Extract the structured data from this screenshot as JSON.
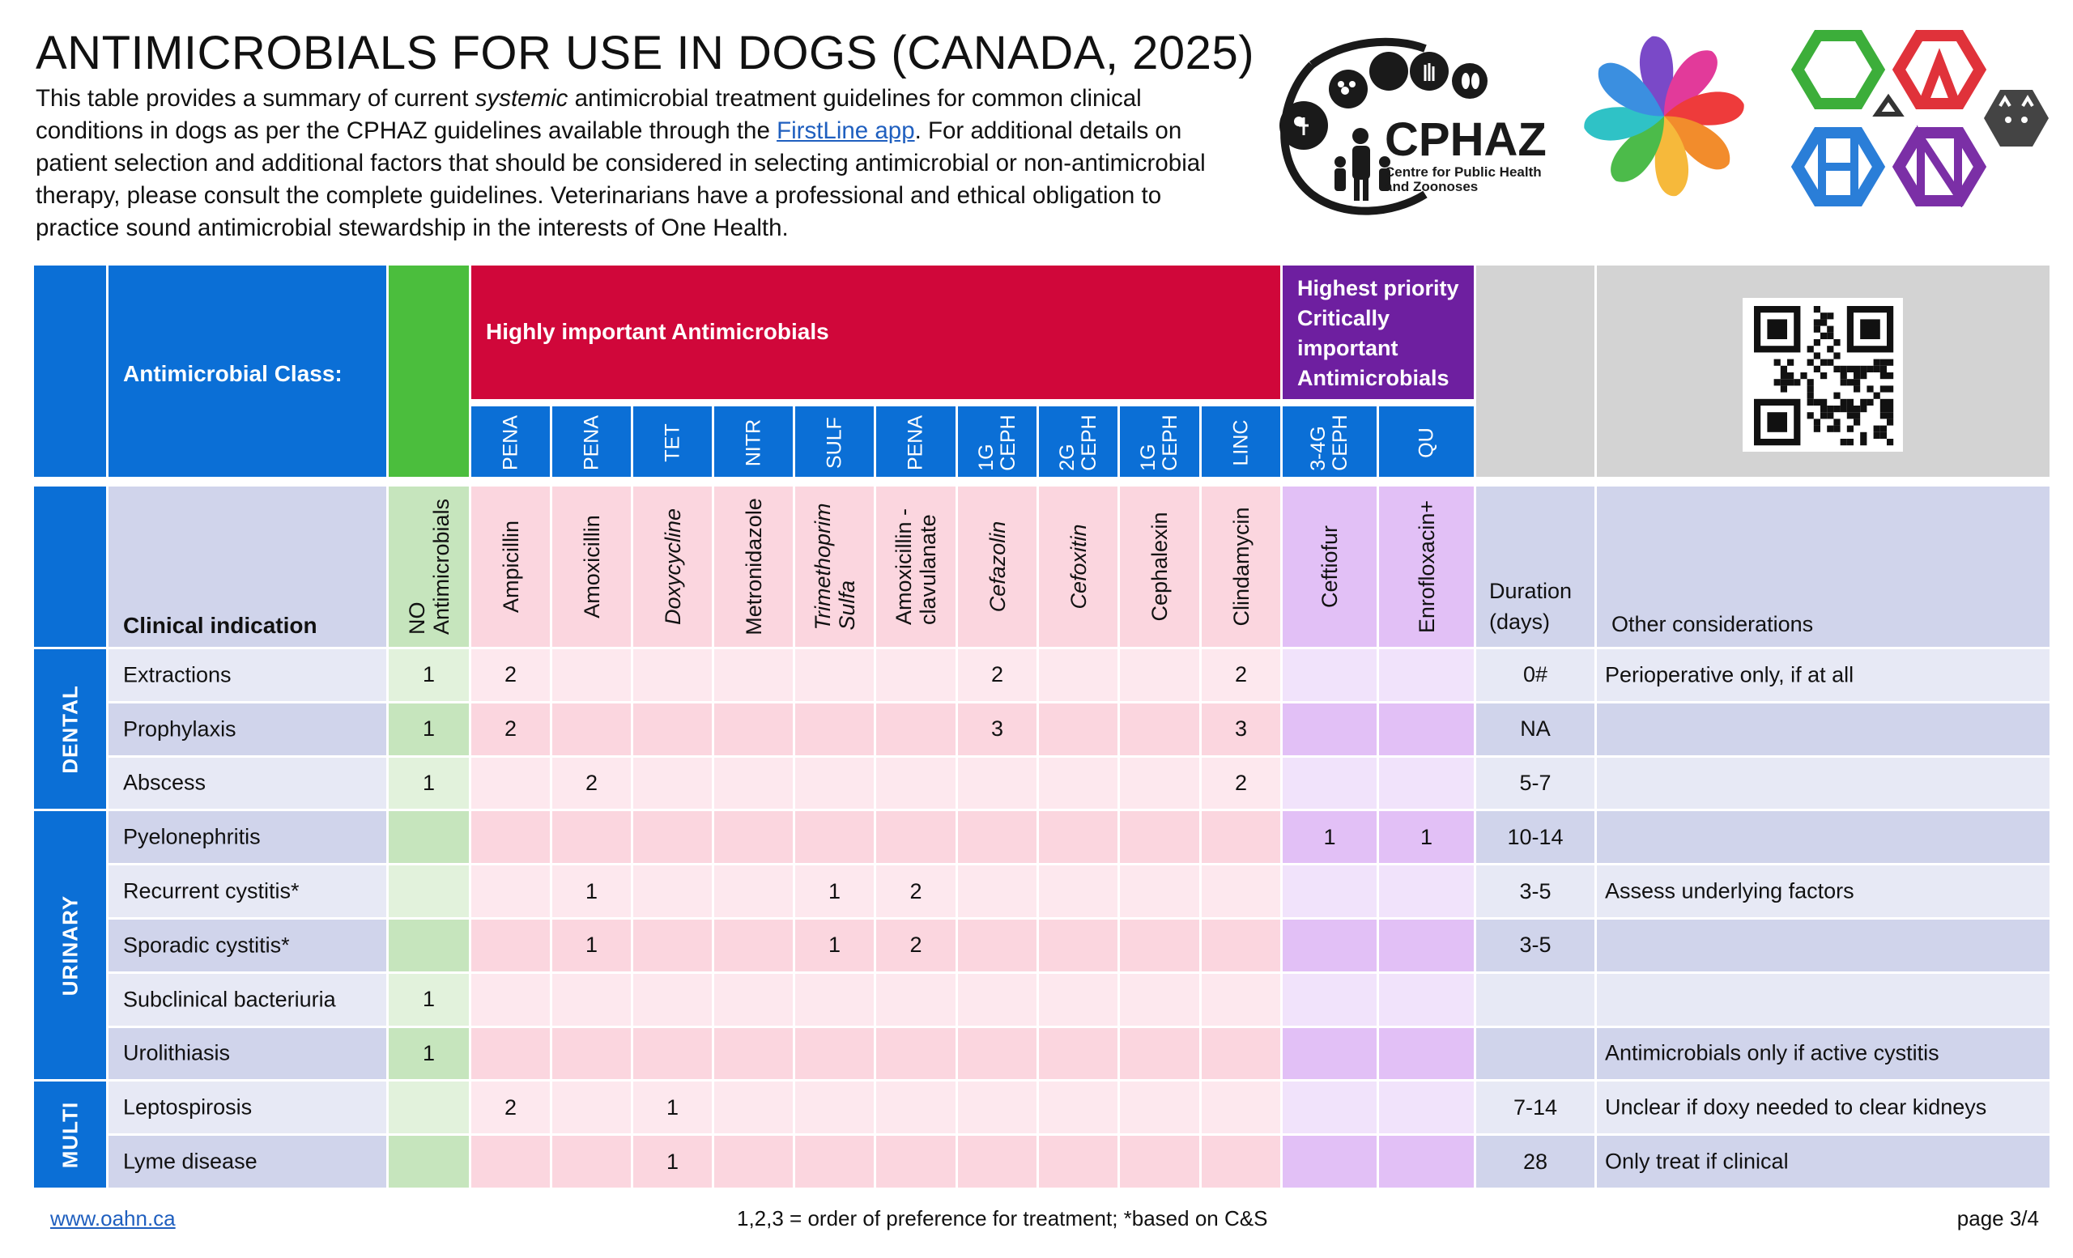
{
  "title": "ANTIMICROBIALS FOR USE IN DOGS (CANADA, 2025)",
  "intro": {
    "p1": "This table provides a summary of current ",
    "italic": "systemic",
    "p2": " antimicrobial treatment guidelines for common clinical conditions in dogs as per the CPHAZ guidelines available through the ",
    "link": "FirstLine app",
    "p3": ".  For additional details on patient selection and additional factors that should be considered in selecting antimicrobial or non-antimicrobial therapy, please consult the complete guidelines. Veterinarians have a professional and ethical obligation to practice sound antimicrobial stewardship in the interests of One Health."
  },
  "logos": {
    "cphaz": {
      "name": "CPHAZ",
      "line1": "Centre for Public Health",
      "line2": "and Zoonoses"
    },
    "flower_icon": "pinwheel-flower-logo",
    "oahn_icon": "oahn-hexagon-logo"
  },
  "header": {
    "class_label": "Antimicrobial Class:",
    "highly_important": "Highly important Antimicrobials",
    "highest_priority": [
      "Highest priority",
      "Critically",
      "important",
      "Antimicrobials"
    ],
    "qr_icon": "qr-code",
    "abbreviations": [
      "PENA",
      "PENA",
      "TET",
      "NITR",
      "SULF",
      "PENA",
      "1G\nCEPH",
      "2G\nCEPH",
      "1G\nCEPH",
      "LINC",
      "3-4G\nCEPH",
      "QU"
    ]
  },
  "subheader": {
    "clinical_indication": "Clinical indication",
    "no_antimicrobials": "NO\nAntimicrobials",
    "drugs": [
      {
        "name": "Ampicillin",
        "italic": false
      },
      {
        "name": "Amoxicillin",
        "italic": false
      },
      {
        "name": "Doxycycline",
        "italic": true
      },
      {
        "name": "Metronidazole",
        "italic": false
      },
      {
        "name": "Trimethoprim\nSulfa",
        "italic": true
      },
      {
        "name": "Amoxicillin -\nclavulanate",
        "italic": false
      },
      {
        "name": "Cefazolin",
        "italic": true
      },
      {
        "name": "Cefoxitin",
        "italic": true
      },
      {
        "name": "Cephalexin",
        "italic": false
      },
      {
        "name": "Clindamycin",
        "italic": false
      },
      {
        "name": "Ceftiofur",
        "italic": false
      },
      {
        "name": "Enrofloxacin+",
        "italic": false
      }
    ],
    "duration": "Duration\n(days)",
    "other": "Other considerations"
  },
  "groups": [
    {
      "label": "DENTAL",
      "rows": 3
    },
    {
      "label": "URINARY",
      "rows": 5
    },
    {
      "label": "MULTI",
      "rows": 2
    }
  ],
  "rows": [
    {
      "indication": "Extractions",
      "no": "1",
      "vals": [
        "2",
        "",
        "",
        "",
        "",
        "",
        "2",
        "",
        "",
        "2",
        "",
        ""
      ],
      "duration": "0#",
      "other": "Perioperative only, if at all"
    },
    {
      "indication": "Prophylaxis",
      "no": "1",
      "vals": [
        "2",
        "",
        "",
        "",
        "",
        "",
        "3",
        "",
        "",
        "3",
        "",
        ""
      ],
      "duration": "NA",
      "other": ""
    },
    {
      "indication": "Abscess",
      "no": "1",
      "vals": [
        "",
        "2",
        "",
        "",
        "",
        "",
        "",
        "",
        "",
        "2",
        "",
        ""
      ],
      "duration": "5-7",
      "other": ""
    },
    {
      "indication": "Pyelonephritis",
      "no": "",
      "vals": [
        "",
        "",
        "",
        "",
        "",
        "",
        "",
        "",
        "",
        "",
        "1",
        "1"
      ],
      "duration": "10-14",
      "other": ""
    },
    {
      "indication": "Recurrent cystitis*",
      "no": "",
      "vals": [
        "",
        "1",
        "",
        "",
        "1",
        "2",
        "",
        "",
        "",
        "",
        "",
        ""
      ],
      "duration": "3-5",
      "other": "Assess underlying factors"
    },
    {
      "indication": "Sporadic cystitis*",
      "no": "",
      "vals": [
        "",
        "1",
        "",
        "",
        "1",
        "2",
        "",
        "",
        "",
        "",
        "",
        ""
      ],
      "duration": "3-5",
      "other": ""
    },
    {
      "indication": "Subclinical bacteriuria",
      "no": "1",
      "vals": [
        "",
        "",
        "",
        "",
        "",
        "",
        "",
        "",
        "",
        "",
        "",
        ""
      ],
      "duration": "",
      "other": ""
    },
    {
      "indication": "Urolithiasis",
      "no": "1",
      "vals": [
        "",
        "",
        "",
        "",
        "",
        "",
        "",
        "",
        "",
        "",
        "",
        ""
      ],
      "duration": "",
      "other": "Antimicrobials only if active cystitis"
    },
    {
      "indication": "Leptospirosis",
      "no": "",
      "vals": [
        "2",
        "",
        "1",
        "",
        "",
        "",
        "",
        "",
        "",
        "",
        "",
        ""
      ],
      "duration": "7-14",
      "other": "Unclear if doxy needed to clear kidneys"
    },
    {
      "indication": "Lyme disease",
      "no": "",
      "vals": [
        "",
        "",
        "1",
        "",
        "",
        "",
        "",
        "",
        "",
        "",
        "",
        ""
      ],
      "duration": "28",
      "other": "Only treat if clinical"
    }
  ],
  "footer": {
    "link": "www.oahn.ca",
    "note": "1,2,3 = order of preference for treatment; *based on C&S",
    "page": "page 3/4"
  },
  "colors": {
    "blue": "#0b6fd6",
    "green": "#4bbe3d",
    "red": "#d0073a",
    "purple": "#6e1fa0",
    "grey": "#d3d3d3"
  }
}
